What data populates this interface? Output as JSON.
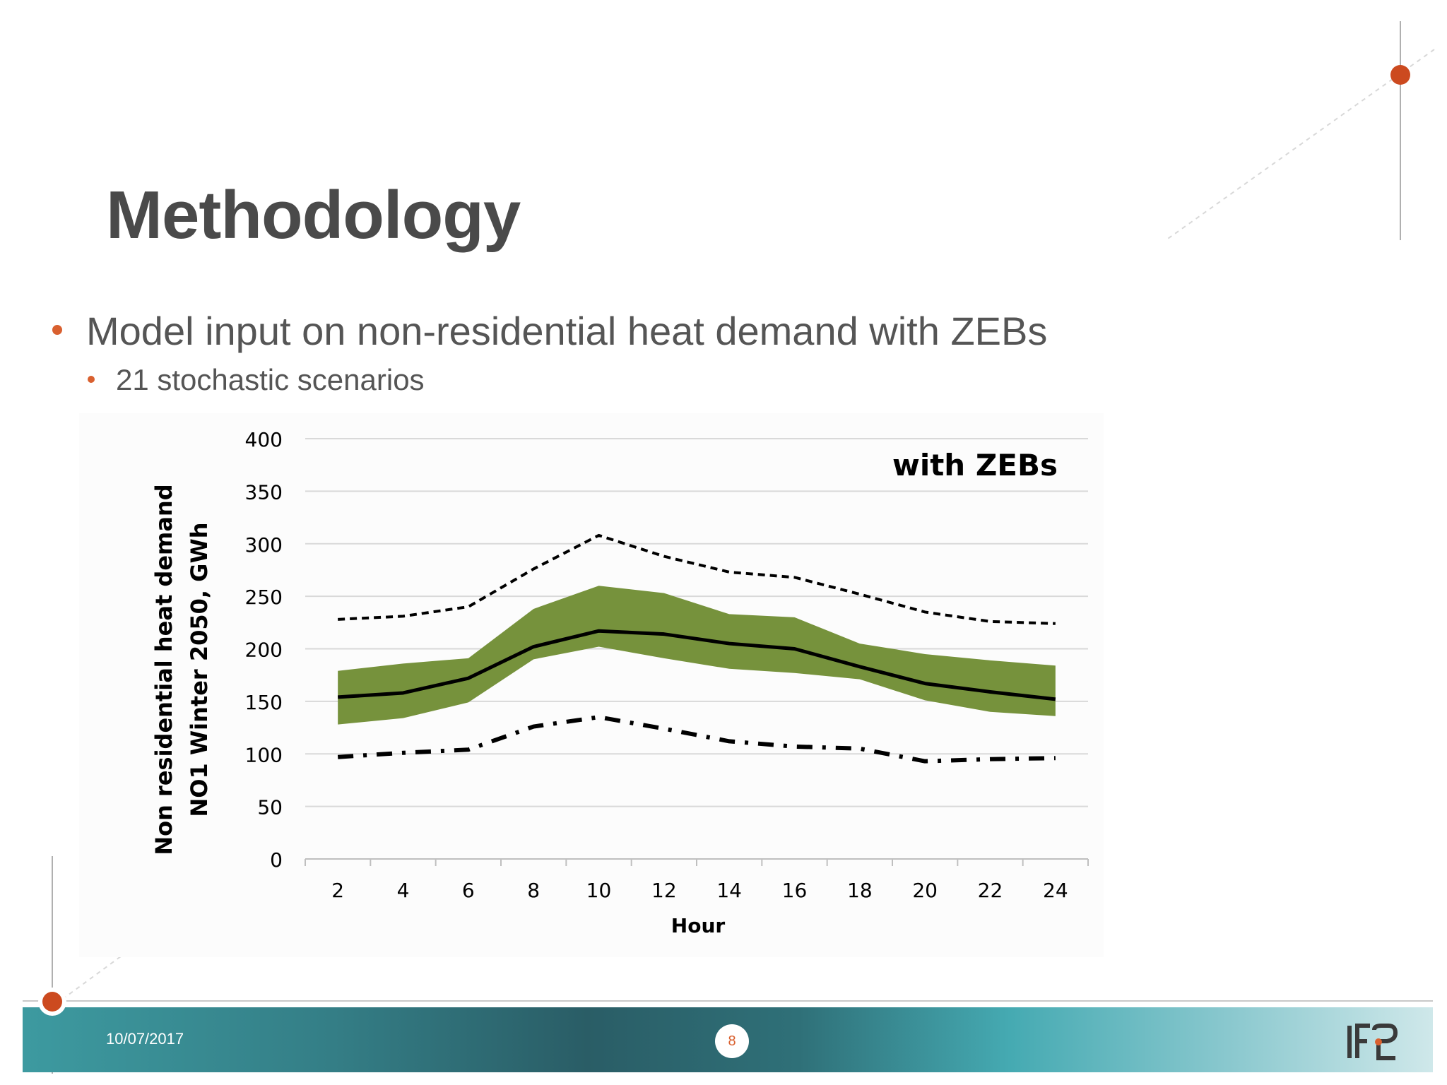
{
  "slide": {
    "title": "Methodology",
    "bullets": [
      {
        "text": "Model input on non-residential heat demand with ZEBs",
        "level": 1
      },
      {
        "text": "21 stochastic scenarios",
        "level": 2
      }
    ],
    "accent_color": "#d9602f",
    "text_color": "#555555"
  },
  "footer": {
    "date": "10/07/2017",
    "page_number": "8",
    "logo_icon": "ife-logo-icon"
  },
  "chart_data": {
    "type": "line",
    "annotation": "with ZEBs",
    "xlabel": "Hour",
    "ylabel_lines": [
      "Non residential heat demand",
      "NO1 Winter 2050, GWh"
    ],
    "x": [
      2,
      4,
      6,
      8,
      10,
      12,
      14,
      16,
      18,
      20,
      22,
      24
    ],
    "xticks": [
      "2",
      "4",
      "6",
      "8",
      "10",
      "12",
      "14",
      "16",
      "18",
      "20",
      "22",
      "24"
    ],
    "yticks": [
      "0",
      "50",
      "100",
      "150",
      "200",
      "250",
      "300",
      "350",
      "400"
    ],
    "ylim": [
      0,
      400
    ],
    "xlim": [
      1,
      25
    ],
    "grid": true,
    "band": {
      "upper": [
        179,
        186,
        191,
        238,
        260,
        253,
        233,
        230,
        205,
        195,
        189,
        184
      ],
      "lower": [
        128,
        134,
        149,
        190,
        202,
        191,
        181,
        177,
        171,
        151,
        140,
        136
      ],
      "color": "#76923c"
    },
    "series": [
      {
        "style": "solid",
        "color": "#000000",
        "values": [
          154,
          158,
          172,
          202,
          217,
          214,
          205,
          200,
          183,
          167,
          159,
          152
        ]
      },
      {
        "style": "dashed",
        "color": "#000000",
        "values": [
          228,
          231,
          240,
          276,
          308,
          288,
          273,
          268,
          252,
          235,
          226,
          224
        ]
      },
      {
        "style": "dashdot",
        "color": "#000000",
        "values": [
          97,
          101,
          104,
          126,
          135,
          124,
          112,
          107,
          105,
          93,
          95,
          96
        ]
      }
    ]
  }
}
